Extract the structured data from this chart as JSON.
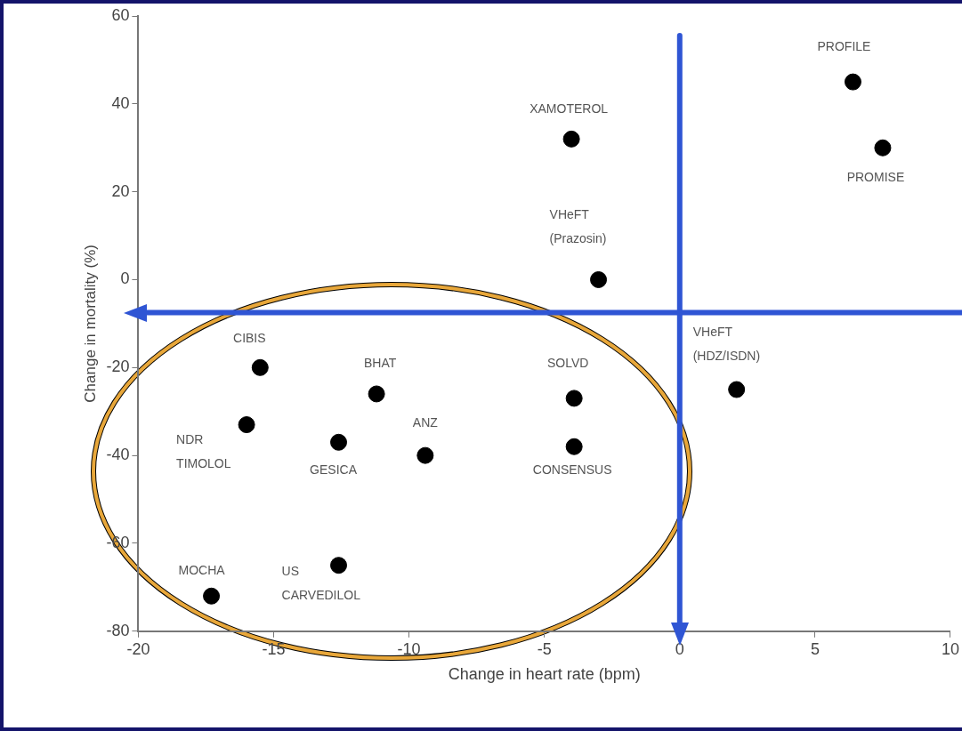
{
  "chart_data": {
    "type": "scatter",
    "xlabel": "Change in heart rate (bpm)",
    "ylabel": "Change in mortality (%)",
    "x": [
      6.4,
      7.5,
      -4,
      -3,
      2.1,
      -15.5,
      -11.2,
      -16,
      -12.6,
      -9.4,
      -3.9,
      -3.9,
      -17.3,
      -12.6
    ],
    "series": [
      {
        "color": "#000000",
        "values": [
          45,
          30,
          32,
          0,
          -25,
          -20,
          -26,
          -33,
          -37,
          -40,
          -27,
          -38,
          -72,
          -65
        ]
      }
    ],
    "marker": "circle",
    "grid": false,
    "ref_lines": [
      {
        "axis": "x",
        "value": 0,
        "color": "#2f55d4"
      },
      {
        "axis": "y",
        "value": -7.5,
        "color": "#2f55d4"
      }
    ],
    "xlim": [
      -20,
      10
    ],
    "xticks": [
      -20,
      -15,
      -10,
      -5,
      0,
      5,
      10
    ],
    "ylim": [
      -80,
      60
    ],
    "yticks": [
      -80,
      -60,
      -40,
      -20,
      0,
      20,
      40,
      60
    ],
    "annotations": [
      {
        "text": "PROFILE",
        "x": 6.4,
        "y": 45
      },
      {
        "text": "PROMISE",
        "x": 7.5,
        "y": 30
      },
      {
        "text": "XAMOTEROL",
        "x": -4,
        "y": 32
      },
      {
        "text": "VHeFT\n(Prazosin)",
        "x": -3,
        "y": 0
      },
      {
        "text": "VHeFT\n(HDZ/ISDN)",
        "x": 2.1,
        "y": -25
      },
      {
        "text": "CIBIS",
        "x": -15.5,
        "y": -20
      },
      {
        "text": "BHAT",
        "x": -11.2,
        "y": -26
      },
      {
        "text": "NDR\nTIMOLOL",
        "x": -16,
        "y": -33
      },
      {
        "text": "GESICA",
        "x": -12.6,
        "y": -37
      },
      {
        "text": "ANZ",
        "x": -9.4,
        "y": -40
      },
      {
        "text": "SOLVD",
        "x": -3.9,
        "y": -27
      },
      {
        "text": "CONSENSUS",
        "x": -3.9,
        "y": -38
      },
      {
        "text": "MOCHA",
        "x": -17.3,
        "y": -72
      },
      {
        "text": "US\nCARVEDILOL",
        "x": -12.6,
        "y": -65
      }
    ]
  }
}
